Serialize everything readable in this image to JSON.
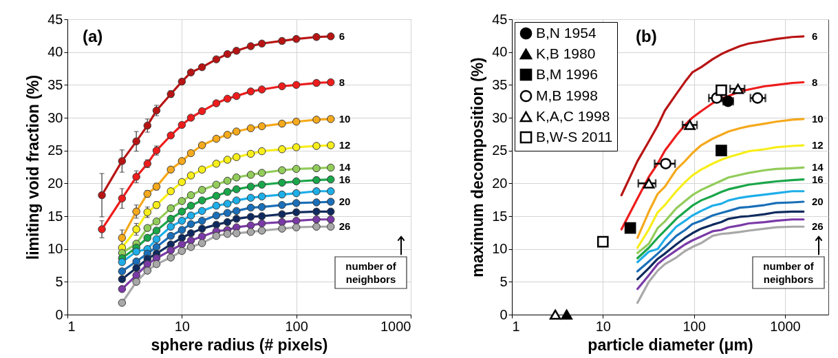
{
  "chart_data": [
    {
      "type": "line",
      "xlabel": "sphere radius (# pixels)",
      "ylabel": "limiting void fraction (%)",
      "log": "x",
      "grid": true,
      "marker": "circle",
      "xlim": [
        1,
        1000
      ],
      "ylim": [
        0,
        45
      ],
      "xticks": [
        1,
        10,
        100,
        1000
      ],
      "yticks": [
        0,
        5,
        10,
        15,
        20,
        25,
        30,
        35,
        40,
        45
      ],
      "annotations": [
        "(a)",
        "number of neighbors"
      ],
      "x": [
        2,
        3,
        4,
        5,
        6,
        8,
        10,
        12,
        15,
        20,
        25,
        30,
        40,
        50,
        75,
        100,
        150,
        200
      ],
      "series": [
        {
          "name": "6",
          "color": "#b81414",
          "values": [
            18.2,
            23.4,
            26.4,
            28.8,
            31.1,
            33.6,
            35.5,
            36.9,
            37.7,
            38.9,
            39.7,
            40.2,
            40.9,
            41.3,
            41.7,
            42.0,
            42.3,
            42.4
          ],
          "errors": [
            [
              14.9,
              21.5
            ],
            1.7,
            1.5,
            1.0,
            0.8,
            0.5,
            null,
            null,
            null,
            null,
            null,
            null,
            null,
            null,
            null,
            null,
            null,
            null
          ]
        },
        {
          "name": "8",
          "color": "#ee1c1c",
          "values": [
            13.0,
            17.7,
            21.0,
            23.0,
            25.0,
            27.3,
            28.9,
            30.0,
            31.0,
            32.2,
            32.9,
            33.3,
            34.0,
            34.3,
            34.8,
            35.0,
            35.3,
            35.4
          ],
          "errors": [
            1.3,
            1.5,
            0.9,
            0.6,
            0.7,
            null,
            null,
            null,
            null,
            null,
            null,
            null,
            null,
            null,
            null,
            null,
            null,
            null
          ]
        },
        {
          "name": "10",
          "color": "#f5a91c",
          "values": [
            null,
            11.7,
            15.7,
            18.4,
            19.5,
            22.1,
            23.4,
            24.6,
            25.8,
            26.8,
            27.4,
            27.9,
            28.4,
            28.7,
            29.1,
            29.4,
            29.7,
            29.8
          ],
          "errors": [
            null,
            1.2,
            1.0,
            0.5,
            0.5,
            null,
            null,
            null,
            null,
            null,
            null,
            null,
            null,
            null,
            null,
            null,
            null,
            null
          ]
        },
        {
          "name": "12",
          "color": "#f7ee1a",
          "values": [
            null,
            10.2,
            13.0,
            15.6,
            16.7,
            18.8,
            20.2,
            21.2,
            22.1,
            23.0,
            23.6,
            24.0,
            24.5,
            24.9,
            25.2,
            25.5,
            25.7,
            25.8
          ],
          "errors": [
            null,
            null,
            0.9,
            0.8,
            0.5,
            null,
            null,
            null,
            null,
            null,
            null,
            null,
            null,
            null,
            null,
            null,
            null,
            null
          ]
        },
        {
          "name": "14",
          "color": "#92cc5a",
          "values": [
            null,
            9.4,
            10.8,
            13.2,
            14.2,
            16.2,
            17.3,
            18.2,
            19.0,
            19.8,
            20.4,
            20.9,
            21.3,
            21.6,
            22.0,
            22.2,
            22.3,
            22.4
          ]
        },
        {
          "name": "16",
          "color": "#1aa64a",
          "values": [
            null,
            8.6,
            10.2,
            11.7,
            12.8,
            14.6,
            15.7,
            16.6,
            17.4,
            18.1,
            18.7,
            19.1,
            19.5,
            19.8,
            20.1,
            20.3,
            20.5,
            20.6
          ]
        },
        {
          "color": "#1eaee8",
          "values": [
            null,
            8.0,
            9.6,
            10.0,
            11.5,
            13.4,
            14.3,
            15.1,
            15.8,
            16.6,
            16.9,
            17.4,
            17.8,
            18.0,
            18.3,
            18.5,
            18.8,
            18.8
          ]
        },
        {
          "name": "20",
          "color": "#1a6fb8",
          "values": [
            null,
            6.6,
            8.1,
            9.3,
            10.3,
            12.0,
            12.9,
            13.8,
            14.3,
            15.1,
            15.5,
            15.8,
            16.3,
            16.4,
            16.7,
            17.0,
            17.1,
            17.2
          ]
        },
        {
          "color": "#0f2a5e",
          "values": [
            null,
            5.4,
            7.1,
            8.5,
            9.3,
            10.7,
            11.7,
            12.4,
            13.1,
            13.7,
            14.1,
            14.6,
            14.9,
            15.0,
            15.3,
            15.6,
            15.7,
            15.7
          ]
        },
        {
          "color": "#7a3aa6",
          "values": [
            null,
            3.9,
            6.0,
            7.7,
            8.6,
            9.8,
            10.7,
            11.3,
            11.9,
            12.7,
            12.9,
            13.3,
            13.6,
            13.9,
            14.1,
            14.3,
            14.5,
            14.5
          ]
        },
        {
          "name": "26",
          "color": "#a8a8a8",
          "values": [
            null,
            1.8,
            5.0,
            6.7,
            7.7,
            8.7,
            9.7,
            10.3,
            10.9,
            12.0,
            12.3,
            12.4,
            12.6,
            12.8,
            13.1,
            13.3,
            13.4,
            13.4
          ]
        }
      ]
    },
    {
      "type": "line",
      "xlabel": "particle diameter (μm)",
      "ylabel": "maximum decomposition (%)",
      "log": "x",
      "grid": true,
      "marker": "none",
      "legend": "top left",
      "xlim": [
        1,
        3000
      ],
      "ylim": [
        0,
        45
      ],
      "xticks": [
        1,
        10,
        100,
        1000
      ],
      "yticks": [
        0,
        5,
        10,
        15,
        20,
        25,
        30,
        35,
        40,
        45
      ],
      "annotations": [
        "(b)",
        "number of neighbors"
      ],
      "x": [
        16,
        24,
        32,
        40,
        48,
        64,
        80,
        96,
        120,
        160,
        200,
        240,
        320,
        400,
        600,
        800,
        1200,
        1600
      ],
      "series": [
        {
          "name": "6",
          "color": "#b81414",
          "values": [
            18.2,
            23.4,
            26.4,
            28.8,
            31.1,
            33.6,
            35.5,
            36.9,
            37.7,
            38.9,
            39.7,
            40.2,
            40.9,
            41.3,
            41.7,
            42.0,
            42.3,
            42.4
          ]
        },
        {
          "name": "8",
          "color": "#ee1c1c",
          "values": [
            13.0,
            17.7,
            21.0,
            23.0,
            25.0,
            27.3,
            28.9,
            30.0,
            31.0,
            32.2,
            32.9,
            33.3,
            34.0,
            34.3,
            34.8,
            35.0,
            35.3,
            35.4
          ]
        },
        {
          "name": "10",
          "color": "#f5a91c",
          "values": [
            null,
            11.7,
            15.7,
            18.4,
            19.5,
            22.1,
            23.4,
            24.6,
            25.8,
            26.8,
            27.4,
            27.9,
            28.4,
            28.7,
            29.1,
            29.4,
            29.7,
            29.8
          ]
        },
        {
          "name": "12",
          "color": "#f7ee1a",
          "values": [
            null,
            10.2,
            13.0,
            15.6,
            16.7,
            18.8,
            20.2,
            21.2,
            22.1,
            23.0,
            23.6,
            24.0,
            24.5,
            24.9,
            25.2,
            25.5,
            25.7,
            25.8
          ]
        },
        {
          "name": "14",
          "color": "#92cc5a",
          "values": [
            null,
            9.4,
            10.8,
            13.2,
            14.2,
            16.2,
            17.3,
            18.2,
            19.0,
            19.8,
            20.4,
            20.9,
            21.3,
            21.6,
            22.0,
            22.2,
            22.3,
            22.4
          ]
        },
        {
          "name": "16",
          "color": "#1aa64a",
          "values": [
            null,
            8.6,
            10.2,
            11.7,
            12.8,
            14.6,
            15.7,
            16.6,
            17.4,
            18.1,
            18.7,
            19.1,
            19.5,
            19.8,
            20.1,
            20.3,
            20.5,
            20.6
          ]
        },
        {
          "color": "#1eaee8",
          "values": [
            null,
            8.0,
            9.6,
            10.0,
            11.5,
            13.4,
            14.3,
            15.1,
            15.8,
            16.6,
            16.9,
            17.4,
            17.8,
            18.0,
            18.3,
            18.5,
            18.8,
            18.8
          ]
        },
        {
          "name": "20",
          "color": "#1a6fb8",
          "values": [
            null,
            6.6,
            8.1,
            9.3,
            10.3,
            12.0,
            12.9,
            13.8,
            14.3,
            15.1,
            15.5,
            15.8,
            16.3,
            16.4,
            16.7,
            17.0,
            17.1,
            17.2
          ]
        },
        {
          "color": "#0f2a5e",
          "values": [
            null,
            5.4,
            7.1,
            8.5,
            9.3,
            10.7,
            11.7,
            12.4,
            13.1,
            13.7,
            14.1,
            14.6,
            14.9,
            15.0,
            15.3,
            15.6,
            15.7,
            15.7
          ]
        },
        {
          "color": "#7a3aa6",
          "values": [
            null,
            3.9,
            6.0,
            7.7,
            8.6,
            9.8,
            10.7,
            11.3,
            11.9,
            12.7,
            12.9,
            13.3,
            13.6,
            13.9,
            14.1,
            14.3,
            14.5,
            14.5
          ]
        },
        {
          "name": "26",
          "color": "#a8a8a8",
          "values": [
            null,
            1.8,
            5.0,
            6.7,
            7.7,
            8.7,
            9.7,
            10.3,
            10.9,
            12.0,
            12.3,
            12.4,
            12.6,
            12.8,
            13.1,
            13.3,
            13.4,
            13.4
          ]
        },
        {
          "type": "scatter",
          "name": "B,N 1954",
          "marker": "circle",
          "color": "#000000",
          "x": [
            237
          ],
          "values": [
            32.5
          ],
          "xerrors": [
            [
              210,
              270
            ]
          ]
        },
        {
          "type": "scatter",
          "name": "K,B 1980",
          "marker": "triangle",
          "color": "#000000",
          "x": [
            4
          ],
          "values": [
            0
          ]
        },
        {
          "type": "scatter",
          "name": "B,M 1996",
          "marker": "square",
          "color": "#000000",
          "x": [
            20,
            200
          ],
          "values": [
            13.2,
            25.0
          ]
        },
        {
          "type": "scatter",
          "name": "M,B 1998",
          "marker": "circle",
          "color": "#ffffff",
          "x": [
            49,
            178,
            500
          ],
          "values": [
            23.0,
            33.0,
            33.0
          ],
          "xerrors": [
            [
              37,
              62
            ],
            [
              146,
              203
            ],
            [
              418,
              610
            ]
          ]
        },
        {
          "type": "scatter",
          "name": "K,A,C 1998",
          "marker": "triangle",
          "color": "#ffffff",
          "x": [
            3,
            32,
            90,
            305
          ],
          "values": [
            0,
            20.0,
            28.9,
            34.4
          ],
          "xerrors": [
            null,
            [
              24.5,
              38
            ],
            [
              75,
              108
            ],
            [
              250,
              360
            ]
          ]
        },
        {
          "type": "scatter",
          "name": "B,W-S 2011",
          "marker": "square",
          "color": "#ffffff",
          "x": [
            10,
            200
          ],
          "values": [
            11.1,
            34.2
          ]
        }
      ]
    }
  ]
}
